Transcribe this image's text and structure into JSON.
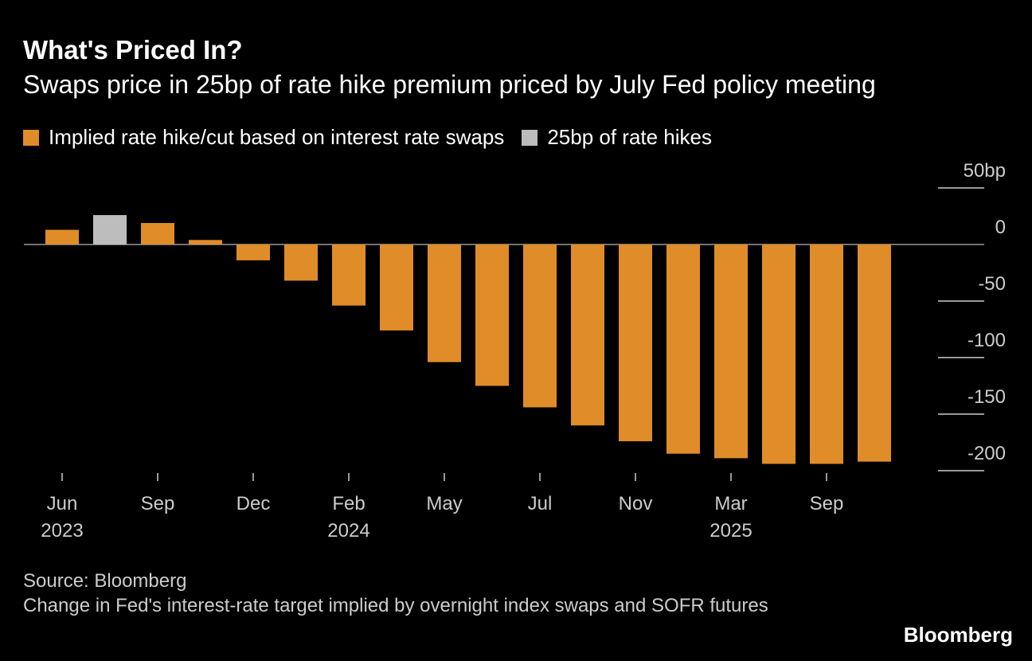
{
  "chart_data": {
    "type": "bar",
    "title": "What's Priced In?",
    "subtitle": "Swaps price in 25bp of rate hike premium priced by July Fed policy meeting",
    "categories": [
      "Jun",
      null,
      "Sep",
      null,
      "Dec",
      null,
      "Feb",
      null,
      "May",
      null,
      "Jul",
      null,
      "Nov",
      null,
      "Mar",
      null,
      "Sep",
      null
    ],
    "years": [
      "2023",
      null,
      null,
      null,
      null,
      null,
      "2024",
      null,
      null,
      null,
      null,
      null,
      null,
      null,
      "2025",
      null,
      null,
      null
    ],
    "series": [
      {
        "name": "Implied rate hike/cut based on interest rate swaps",
        "color": "#e08c28",
        "values": [
          13,
          null,
          19,
          4,
          -14,
          -32,
          -54,
          -76,
          -104,
          -125,
          -144,
          -160,
          -174,
          -185,
          -189,
          -194,
          -194,
          -192
        ]
      },
      {
        "name": "25bp of rate hikes",
        "color": "#bdbdbd",
        "values": [
          null,
          26,
          null,
          null,
          null,
          null,
          null,
          null,
          null,
          null,
          null,
          null,
          null,
          null,
          null,
          null,
          null,
          null
        ]
      }
    ],
    "ylim": [
      -200,
      50
    ],
    "yticks": [
      {
        "value": 50,
        "label": "50bp"
      },
      0,
      -50,
      -100,
      -150,
      -200
    ],
    "source": "Source: Bloomberg",
    "note": "Change in Fed's interest-rate target implied by overnight index swaps and SOFR futures",
    "brand": "Bloomberg"
  }
}
